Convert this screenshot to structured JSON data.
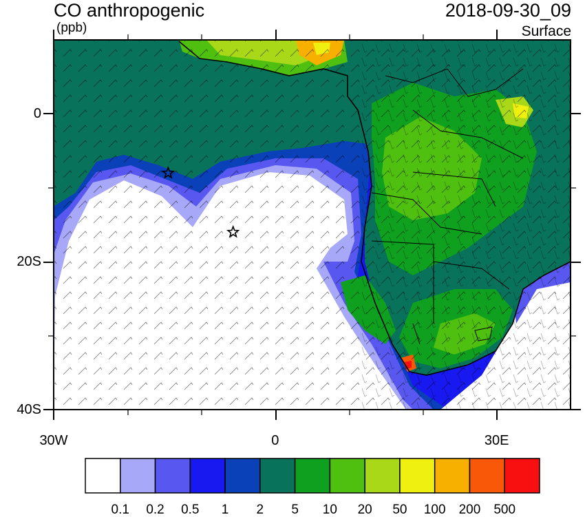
{
  "header": {
    "title": "CO anthropogenic",
    "units": "(ppb)",
    "datetime": "2018-09-30_09",
    "level": "Surface"
  },
  "axes": {
    "lat_labels": [
      {
        "text": "0",
        "lat": 0
      },
      {
        "text": "20S",
        "lat": -20
      },
      {
        "text": "40S",
        "lat": -40
      }
    ],
    "lon_labels": [
      {
        "text": "30W",
        "lon": -30
      },
      {
        "text": "0",
        "lon": 0
      },
      {
        "text": "30E",
        "lon": 30
      }
    ],
    "extent": {
      "lon_min": -30,
      "lon_max": 40,
      "lat_min": -40,
      "lat_max": 10
    }
  },
  "colorbar": {
    "labels": [
      "0.1",
      "0.2",
      "0.5",
      "1",
      "2",
      "5",
      "10",
      "20",
      "50",
      "100",
      "200",
      "500"
    ],
    "colors": [
      "#ffffff",
      "#a8a8f8",
      "#5858f0",
      "#1818f0",
      "#0a40b8",
      "#08725a",
      "#10a020",
      "#50c010",
      "#a8d818",
      "#f0f010",
      "#f8b000",
      "#f85808",
      "#f81010"
    ]
  },
  "markers": {
    "stars": [
      {
        "name": "star-1",
        "lon": -14.5,
        "lat": -8
      },
      {
        "name": "star-2",
        "lon": -5.7,
        "lat": -16
      }
    ]
  }
}
